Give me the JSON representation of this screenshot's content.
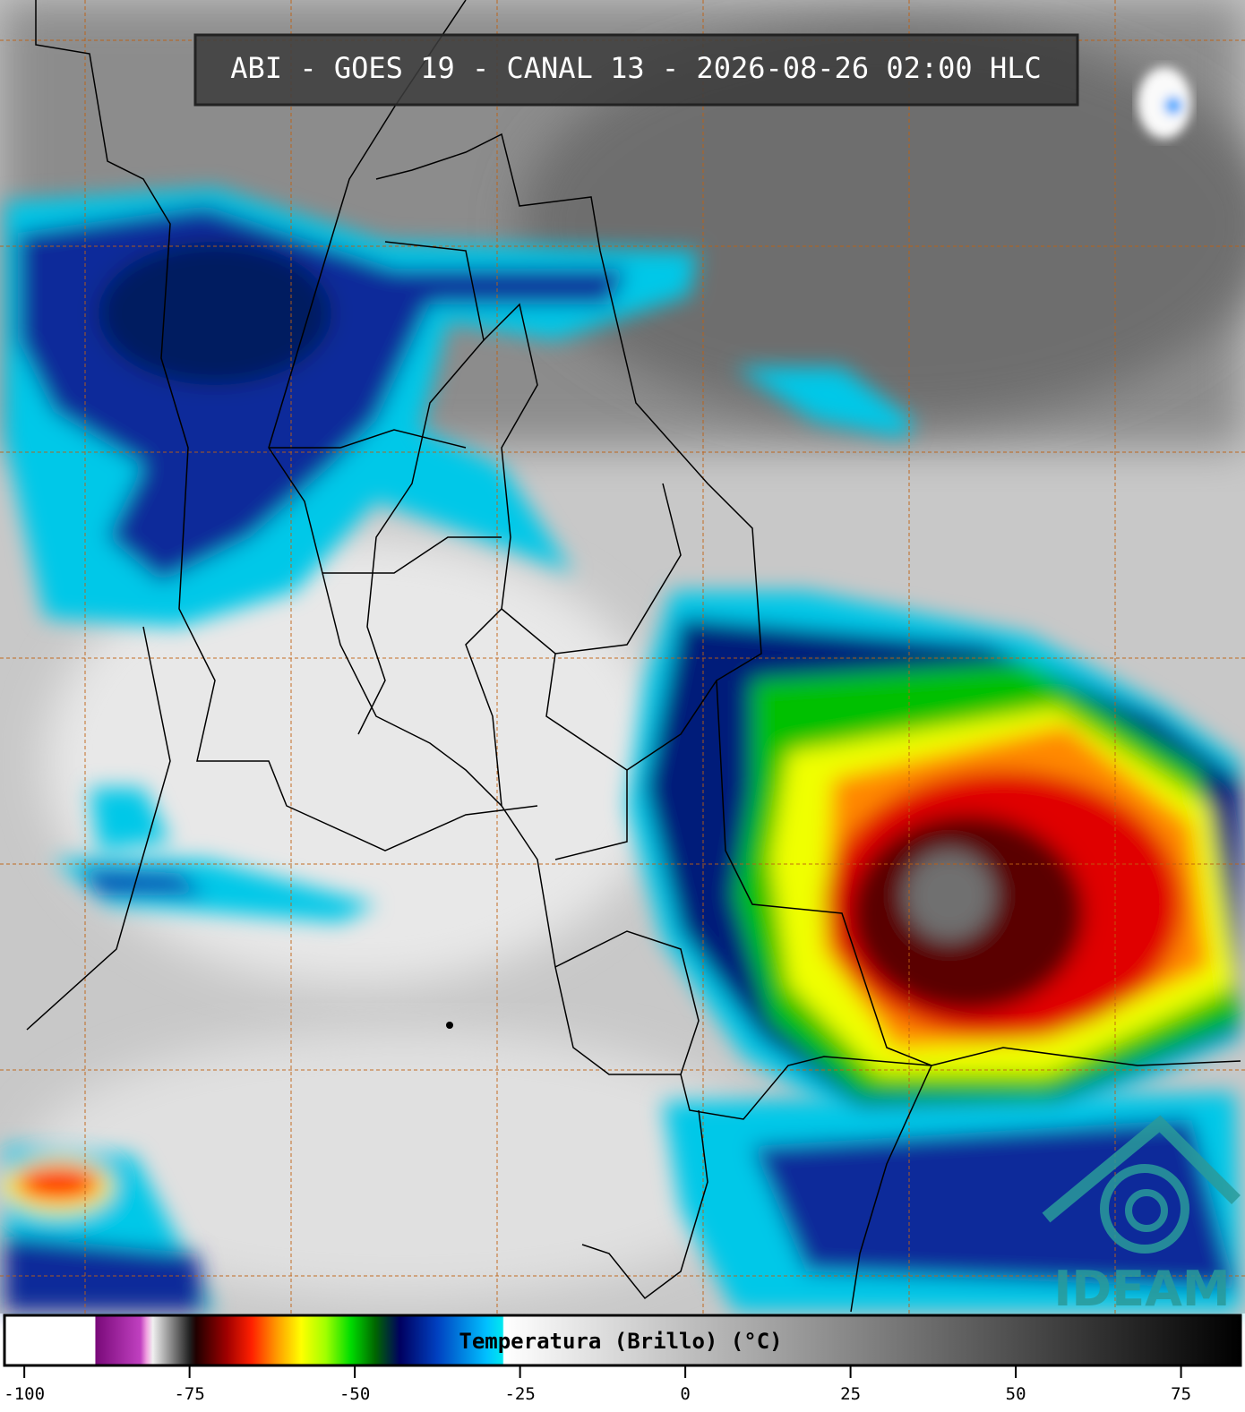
{
  "title": "ABI - GOES 19 - CANAL 13 - 2026-08-26 02:00 HLC",
  "colorbar": {
    "label": "Temperatura (Brillo) (°C)",
    "lim": [
      -103,
      84
    ],
    "ticks": [
      -100,
      -75,
      -50,
      -25,
      0,
      25,
      50,
      75
    ]
  },
  "logo": "IDEAM"
}
